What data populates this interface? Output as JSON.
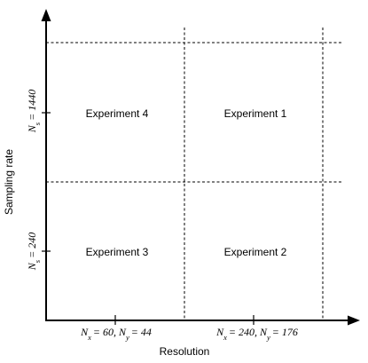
{
  "axes": {
    "x_title": "Resolution",
    "y_title": "Sampling rate",
    "x_ticks": [
      {
        "var1": "N",
        "sub1": "x",
        "val1": "60",
        "var2": "N",
        "sub2": "y",
        "val2": "44"
      },
      {
        "var1": "N",
        "sub1": "x",
        "val1": "240",
        "var2": "N",
        "sub2": "y",
        "val2": "176"
      }
    ],
    "y_ticks": [
      {
        "var": "N",
        "sub": "s",
        "val": "240"
      },
      {
        "var": "N",
        "sub": "s",
        "val": "1440"
      }
    ]
  },
  "cells": {
    "top_left": "Experiment 4",
    "top_right": "Experiment 1",
    "bottom_left": "Experiment 3",
    "bottom_right": "Experiment 2"
  },
  "colors": {
    "line": "#000000",
    "text": "#000000",
    "background": "#ffffff"
  }
}
